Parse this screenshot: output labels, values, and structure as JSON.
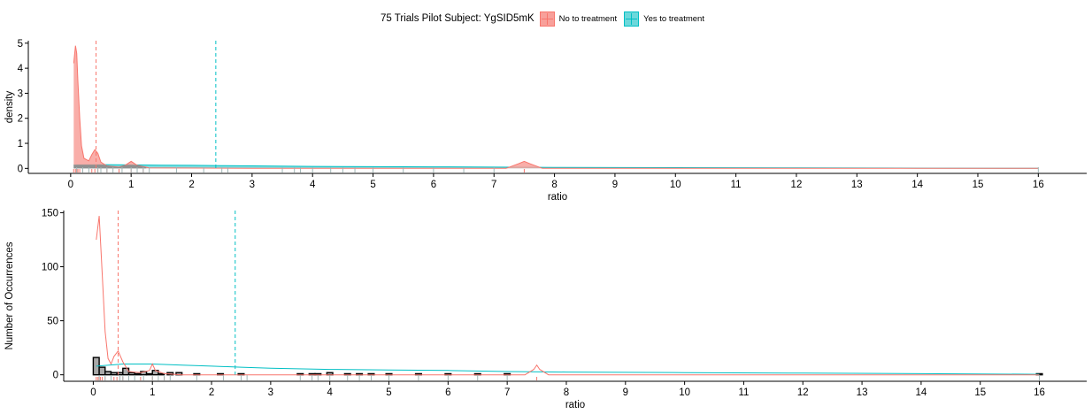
{
  "legend": {
    "title": "75 Trials Pilot Subject:  YgSID5mK",
    "items": [
      {
        "label": "No to treatment",
        "color": "#F8766D",
        "fill": "#F8A09A"
      },
      {
        "label": "Yes to treatment",
        "color": "#00BFC4",
        "fill": "#6DD8DB"
      }
    ]
  },
  "chart_data": [
    {
      "type": "area",
      "xlabel": "ratio",
      "ylabel": "density",
      "xlim": [
        -0.7,
        16.8
      ],
      "ylim": [
        -0.2,
        5.1
      ],
      "xticks": [
        0,
        1,
        2,
        3,
        4,
        5,
        6,
        7,
        8,
        9,
        10,
        11,
        12,
        13,
        14,
        15,
        16
      ],
      "yticks": [
        0,
        1,
        2,
        3,
        4,
        5
      ],
      "mean_lines": [
        {
          "series": "No to treatment",
          "x": 0.42
        },
        {
          "series": "Yes to treatment",
          "x": 2.4
        }
      ],
      "series": [
        {
          "name": "No to treatment",
          "x": [
            0.05,
            0.08,
            0.1,
            0.12,
            0.15,
            0.18,
            0.22,
            0.3,
            0.35,
            0.4,
            0.45,
            0.5,
            0.6,
            0.8,
            0.9,
            1.0,
            1.1,
            1.3,
            3,
            7.2,
            7.4,
            7.5,
            7.6,
            7.8,
            16
          ],
          "y": [
            4.2,
            4.9,
            4.6,
            3.5,
            2.0,
            0.9,
            0.4,
            0.3,
            0.55,
            0.75,
            0.6,
            0.25,
            0.1,
            0.05,
            0.12,
            0.28,
            0.12,
            0.02,
            0.0,
            0.0,
            0.18,
            0.28,
            0.18,
            0.0,
            0.0
          ]
        },
        {
          "name": "Yes to treatment",
          "x": [
            0.05,
            0.5,
            1.0,
            1.5,
            2.0,
            2.5,
            3,
            4,
            5,
            6,
            7,
            8,
            10,
            12,
            14,
            16
          ],
          "y": [
            0.14,
            0.15,
            0.14,
            0.13,
            0.12,
            0.11,
            0.1,
            0.08,
            0.07,
            0.06,
            0.05,
            0.04,
            0.03,
            0.02,
            0.01,
            0.0
          ]
        }
      ],
      "rug": {
        "No to treatment": [
          0.05,
          0.08,
          0.1,
          0.12,
          0.15,
          0.2,
          0.35,
          0.4,
          0.45,
          0.5,
          0.6,
          0.8,
          1.0,
          1.2,
          7.5
        ],
        "Yes to treatment": [
          0.1,
          0.2,
          0.3,
          0.45,
          0.5,
          0.6,
          0.7,
          0.85,
          1.0,
          1.1,
          1.2,
          1.3,
          1.75,
          2.2,
          2.5,
          2.6,
          3.5,
          3.7,
          3.8,
          4.0,
          4.3,
          4.5,
          4.7,
          5.0,
          5.5,
          6.0,
          6.5,
          7.0,
          16.0
        ]
      }
    },
    {
      "type": "bar",
      "xlabel": "ratio",
      "ylabel": "Number of Occurrences",
      "xlim": [
        -0.5,
        16.8
      ],
      "ylim": [
        -6,
        152
      ],
      "xticks": [
        0,
        1,
        2,
        3,
        4,
        5,
        6,
        7,
        8,
        9,
        10,
        11,
        12,
        13,
        14,
        15,
        16
      ],
      "yticks": [
        0,
        50,
        100,
        150
      ],
      "mean_lines": [
        {
          "series": "No to treatment",
          "x": 0.42
        },
        {
          "series": "Yes to treatment",
          "x": 2.4
        }
      ],
      "bins": {
        "x": [
          0.05,
          0.15,
          0.25,
          0.35,
          0.45,
          0.55,
          0.65,
          0.75,
          0.85,
          0.95,
          1.05,
          1.15,
          1.3,
          1.45,
          1.75,
          2.15,
          2.5,
          3.5,
          3.7,
          3.8,
          4.0,
          4.3,
          4.5,
          4.7,
          5.0,
          5.5,
          6.0,
          6.5,
          7.0,
          16.0
        ],
        "counts": [
          16,
          7,
          3,
          2,
          2,
          6,
          2,
          1,
          3,
          1,
          4,
          1,
          2,
          2,
          1,
          1,
          1,
          1,
          1,
          1,
          2,
          1,
          1,
          1,
          1,
          1,
          1,
          1,
          1,
          1
        ]
      },
      "series": [
        {
          "name": "No to treatment",
          "x": [
            0.05,
            0.1,
            0.15,
            0.2,
            0.25,
            0.3,
            0.35,
            0.42,
            0.5,
            0.6,
            0.8,
            0.95,
            1.0,
            1.05,
            1.2,
            1.5,
            3,
            7.3,
            7.45,
            7.5,
            7.55,
            7.7,
            16
          ],
          "y": [
            125,
            147,
            95,
            40,
            15,
            10,
            17,
            22,
            12,
            3,
            2,
            4,
            10,
            4,
            1,
            0,
            0,
            0,
            5,
            9,
            5,
            0,
            0
          ]
        },
        {
          "name": "Yes to treatment",
          "x": [
            0.05,
            0.5,
            1.0,
            1.5,
            2.0,
            2.5,
            3,
            4,
            5,
            6,
            7,
            8,
            10,
            12,
            14,
            16
          ],
          "y": [
            8,
            10,
            10,
            9,
            8,
            7,
            6,
            5,
            4.5,
            4,
            3,
            2.5,
            2,
            1.5,
            1,
            0.5
          ]
        }
      ],
      "rug": {
        "No to treatment": [
          0.05,
          0.08,
          0.1,
          0.12,
          0.15,
          0.2,
          0.35,
          0.4,
          0.45,
          0.5,
          0.6,
          0.8,
          1.0,
          1.2,
          7.5
        ],
        "Yes to treatment": [
          0.1,
          0.2,
          0.3,
          0.45,
          0.5,
          0.6,
          0.7,
          0.85,
          1.0,
          1.1,
          1.2,
          1.3,
          1.75,
          2.2,
          2.5,
          2.6,
          3.5,
          3.7,
          3.8,
          4.0,
          4.3,
          4.5,
          4.7,
          5.0,
          5.5,
          6.0,
          6.5,
          7.0,
          16.0
        ]
      }
    }
  ]
}
